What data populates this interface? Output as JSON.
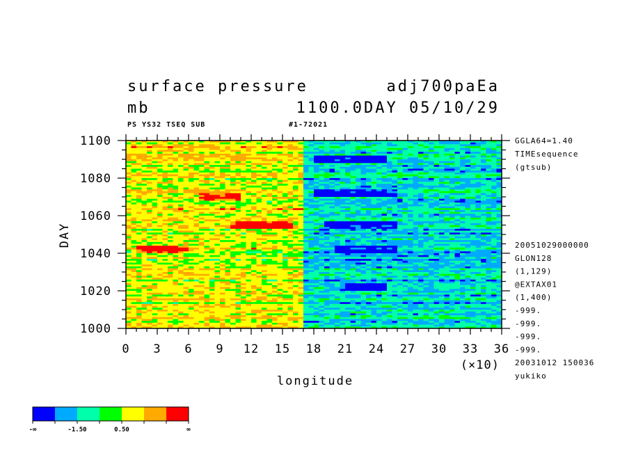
{
  "title": {
    "variable": "surface pressure",
    "experiment": "adj700paEa",
    "unit": "mb",
    "time": "1100.0DAY 05/10/29"
  },
  "subtitle": {
    "left": "PS YS32 TSEQ SUB",
    "right": "#1-72021"
  },
  "side_info": {
    "top": [
      "GGLA64=1.40",
      "TIMEsequence",
      "(gtsub)"
    ],
    "bottom": [
      "20051029000000",
      "GLON128",
      "(1,129)",
      "@EXTAX01",
      "(1,400)",
      "-999.",
      "-999.",
      "-999.",
      "-999.",
      "20031012 150036",
      "yukiko"
    ]
  },
  "colorbar": {
    "colors": [
      "#0000ff",
      "#00aaff",
      "#00ffaa",
      "#00ff00",
      "#ffff00",
      "#ffaa00",
      "#ff0000"
    ],
    "labels": [
      "-∞",
      "-1.50",
      "0.50",
      "∞"
    ]
  },
  "chart_data": {
    "type": "heatmap",
    "xlabel": "longitude",
    "ylabel": "DAY",
    "x_scale_note": "(×10)",
    "xlim": [
      0,
      36
    ],
    "ylim": [
      1000,
      1100
    ],
    "x_ticks": [
      "0",
      "3",
      "6",
      "9",
      "12",
      "15",
      "18",
      "21",
      "24",
      "27",
      "30",
      "33",
      "36"
    ],
    "y_ticks": [
      "1000",
      "1020",
      "1040",
      "1060",
      "1080",
      "1100"
    ],
    "color_levels": [
      "< -1.50",
      "-1.50 to -0.50",
      "-0.50 to 0.50",
      "0.50 to 1.50",
      "> 1.50"
    ],
    "regions": [
      {
        "lon_range": [
          0,
          170
        ],
        "typical": "yellow/orange with green streaks (positive anomaly)"
      },
      {
        "lon_range": [
          170,
          360
        ],
        "typical": "cyan/green with blue streaks (negative anomaly)"
      }
    ],
    "features": [
      {
        "label": "red band",
        "lon": [
          70,
          110
        ],
        "day": 1070
      },
      {
        "label": "red band",
        "lon": [
          100,
          160
        ],
        "day": 1055
      },
      {
        "label": "red band",
        "lon": [
          10,
          60
        ],
        "day": 1042
      },
      {
        "label": "blue band",
        "lon": [
          180,
          260
        ],
        "day": 1072
      },
      {
        "label": "blue band",
        "lon": [
          190,
          260
        ],
        "day": 1055
      },
      {
        "label": "blue band",
        "lon": [
          200,
          260
        ],
        "day": 1042
      },
      {
        "label": "blue band",
        "lon": [
          210,
          250
        ],
        "day": 1022
      },
      {
        "label": "blue band",
        "lon": [
          180,
          250
        ],
        "day": 1090
      }
    ]
  }
}
